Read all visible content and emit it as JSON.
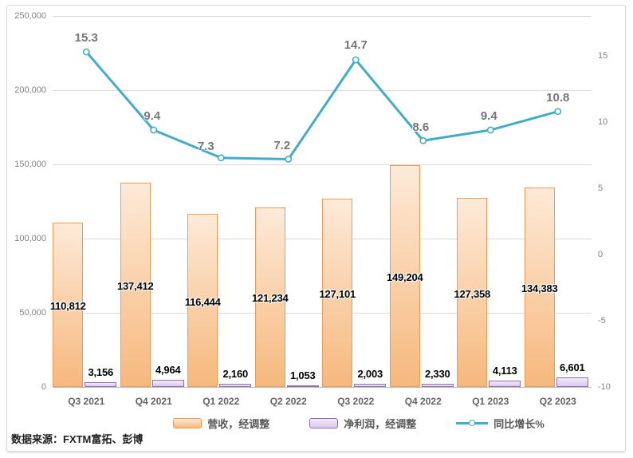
{
  "chart_data": {
    "type": "combo",
    "title": "",
    "categories": [
      "Q3 2021",
      "Q4 2021",
      "Q1 2022",
      "Q2 2022",
      "Q3 2022",
      "Q4 2022",
      "Q1 2023",
      "Q2 2023"
    ],
    "series": [
      {
        "name": "营收，经调整",
        "type": "bar",
        "axis": "left",
        "values": [
          110812,
          137412,
          116444,
          121234,
          127101,
          149204,
          127358,
          134383
        ]
      },
      {
        "name": "净利润，经调整",
        "type": "bar",
        "axis": "left",
        "values": [
          3156,
          4964,
          2160,
          1053,
          2003,
          2330,
          4113,
          6601
        ]
      },
      {
        "name": "同比增长%",
        "type": "line",
        "axis": "right",
        "values": [
          15.3,
          9.4,
          7.3,
          7.2,
          14.7,
          8.6,
          9.4,
          10.8
        ]
      }
    ],
    "left_axis": {
      "min": 0,
      "max": 250000,
      "step": 50000,
      "tick_values": [
        0,
        50000,
        100000,
        150000,
        200000,
        250000
      ]
    },
    "right_axis": {
      "min": -10,
      "max": 18,
      "tick_values": [
        15,
        10,
        5,
        0,
        -5,
        -10
      ]
    },
    "grid": true,
    "legend_position": "bottom"
  },
  "source_note": "数据来源：FXTM富拓、彭博",
  "colors": {
    "revenue_fill_top": "#FDEAD8",
    "revenue_fill_bottom": "#F6B87D",
    "revenue_border": "#ED9C56",
    "profit_fill_top": "#F0EAF8",
    "profit_fill_bottom": "#DAC8EC",
    "profit_border": "#8F6FB0",
    "line": "#41ADC8",
    "grid": "#D9D9D9",
    "axis_line": "#BFBFBF",
    "tick_label": "#838383",
    "category_label": "#636363",
    "point_label": "#767676",
    "bar_label": "#000000",
    "legend_text": "#595959"
  }
}
